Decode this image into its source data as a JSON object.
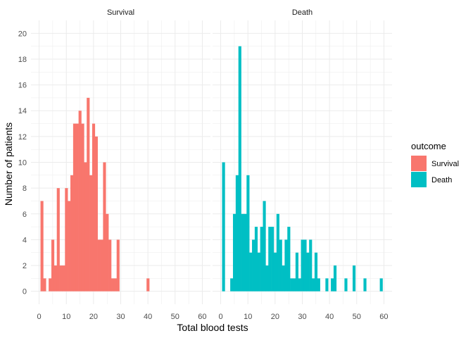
{
  "chart_data": {
    "type": "bar",
    "subtype": "faceted-histogram",
    "xlabel": "Total blood tests",
    "ylabel": "Number of patients",
    "xlim": [
      -3,
      63
    ],
    "ylim": [
      -1,
      21
    ],
    "x_ticks": [
      0,
      10,
      20,
      30,
      40,
      50,
      60
    ],
    "y_ticks": [
      0,
      2,
      4,
      6,
      8,
      10,
      12,
      14,
      16,
      18,
      20
    ],
    "bin_width": 1,
    "grid": true,
    "legend": {
      "title": "outcome",
      "position": "right",
      "entries": [
        {
          "label": "Survival",
          "color": "#F8766D"
        },
        {
          "label": "Death",
          "color": "#00BFC4"
        }
      ]
    },
    "facets": [
      {
        "label": "Survival",
        "color": "#F8766D",
        "bins": [
          {
            "x": 1,
            "y": 7
          },
          {
            "x": 2,
            "y": 1
          },
          {
            "x": 4,
            "y": 1
          },
          {
            "x": 5,
            "y": 4
          },
          {
            "x": 6,
            "y": 2
          },
          {
            "x": 7,
            "y": 8
          },
          {
            "x": 8,
            "y": 2
          },
          {
            "x": 9,
            "y": 2
          },
          {
            "x": 10,
            "y": 8
          },
          {
            "x": 11,
            "y": 7
          },
          {
            "x": 12,
            "y": 9
          },
          {
            "x": 13,
            "y": 13
          },
          {
            "x": 14,
            "y": 13
          },
          {
            "x": 15,
            "y": 14
          },
          {
            "x": 16,
            "y": 13
          },
          {
            "x": 17,
            "y": 10
          },
          {
            "x": 18,
            "y": 15
          },
          {
            "x": 19,
            "y": 9
          },
          {
            "x": 20,
            "y": 13
          },
          {
            "x": 21,
            "y": 12
          },
          {
            "x": 22,
            "y": 4
          },
          {
            "x": 23,
            "y": 4
          },
          {
            "x": 24,
            "y": 10
          },
          {
            "x": 25,
            "y": 6
          },
          {
            "x": 26,
            "y": 4
          },
          {
            "x": 27,
            "y": 1
          },
          {
            "x": 28,
            "y": 1
          },
          {
            "x": 29,
            "y": 4
          },
          {
            "x": 40,
            "y": 1
          }
        ]
      },
      {
        "label": "Death",
        "color": "#00BFC4",
        "bins": [
          {
            "x": 1,
            "y": 10
          },
          {
            "x": 4,
            "y": 1
          },
          {
            "x": 5,
            "y": 6
          },
          {
            "x": 6,
            "y": 9
          },
          {
            "x": 7,
            "y": 19
          },
          {
            "x": 8,
            "y": 6
          },
          {
            "x": 9,
            "y": 6
          },
          {
            "x": 10,
            "y": 9
          },
          {
            "x": 11,
            "y": 3
          },
          {
            "x": 12,
            "y": 4
          },
          {
            "x": 13,
            "y": 5
          },
          {
            "x": 14,
            "y": 3
          },
          {
            "x": 15,
            "y": 5
          },
          {
            "x": 16,
            "y": 7
          },
          {
            "x": 17,
            "y": 2
          },
          {
            "x": 18,
            "y": 5
          },
          {
            "x": 19,
            "y": 5
          },
          {
            "x": 20,
            "y": 3
          },
          {
            "x": 21,
            "y": 6
          },
          {
            "x": 22,
            "y": 4
          },
          {
            "x": 23,
            "y": 2
          },
          {
            "x": 24,
            "y": 4
          },
          {
            "x": 25,
            "y": 5
          },
          {
            "x": 26,
            "y": 1
          },
          {
            "x": 27,
            "y": 1
          },
          {
            "x": 28,
            "y": 3
          },
          {
            "x": 29,
            "y": 1
          },
          {
            "x": 30,
            "y": 4
          },
          {
            "x": 31,
            "y": 4
          },
          {
            "x": 32,
            "y": 3
          },
          {
            "x": 33,
            "y": 4
          },
          {
            "x": 34,
            "y": 1
          },
          {
            "x": 35,
            "y": 3
          },
          {
            "x": 36,
            "y": 1
          },
          {
            "x": 39,
            "y": 1
          },
          {
            "x": 41,
            "y": 1
          },
          {
            "x": 42,
            "y": 2
          },
          {
            "x": 46,
            "y": 1
          },
          {
            "x": 49,
            "y": 2
          },
          {
            "x": 53,
            "y": 1
          },
          {
            "x": 59,
            "y": 1
          }
        ]
      }
    ]
  }
}
